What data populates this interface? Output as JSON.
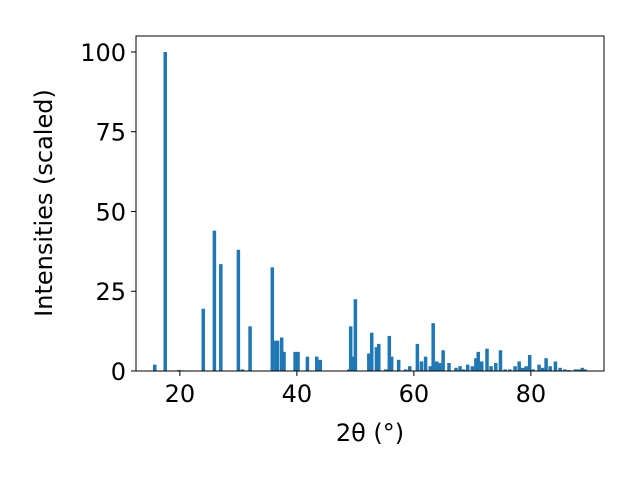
{
  "chart_data": {
    "type": "bar",
    "xlabel": "2θ (°)",
    "ylabel": "Intensities (scaled)",
    "xlim": [
      12.5,
      92.5
    ],
    "ylim": [
      0,
      105
    ],
    "xticks": [
      20,
      40,
      60,
      80
    ],
    "yticks": [
      0,
      25,
      50,
      75,
      100
    ],
    "bar_width_deg": 0.6,
    "color": "#1f77b4",
    "grid": false,
    "series": [
      {
        "x": [
          15.7,
          17.5,
          19.8,
          20.5,
          24.0,
          25.9,
          27.0,
          30.0,
          30.7,
          32.0,
          35.8,
          36.4,
          36.7,
          37.4,
          37.8,
          39.7,
          40.2,
          41.8,
          43.4,
          44.0,
          48.9,
          49.2,
          49.6,
          50.0,
          52.3,
          52.8,
          53.6,
          54.0,
          55.2,
          55.8,
          56.2,
          57.4,
          58.6,
          59.3,
          60.6,
          61.3,
          62.0,
          62.8,
          63.3,
          63.9,
          64.4,
          65.0,
          66.0,
          67.2,
          67.9,
          68.5,
          69.2,
          70.0,
          70.6,
          71.0,
          71.6,
          72.5,
          73.2,
          74.0,
          74.8,
          75.6,
          76.4,
          77.3,
          78.0,
          78.6,
          79.2,
          79.8,
          80.4,
          81.4,
          82.0,
          82.6,
          83.3,
          84.2,
          85.0,
          85.8,
          86.5,
          87.6,
          88.2,
          88.8,
          89.3
        ],
        "values": [
          2,
          100,
          0.3,
          0.2,
          19.5,
          44,
          33.5,
          38,
          0.5,
          14,
          32.5,
          9.5,
          9.5,
          10.5,
          6,
          6,
          6,
          4.5,
          4.5,
          3.5,
          0.5,
          14,
          4.5,
          22.5,
          5.5,
          12,
          7.5,
          8.5,
          0.5,
          11,
          4.5,
          3.5,
          0.5,
          1.5,
          8.5,
          3,
          4.5,
          1.5,
          15,
          3,
          2.5,
          6.5,
          2.5,
          1,
          1.5,
          0.5,
          2,
          1.5,
          4,
          6,
          3,
          7,
          1.5,
          2.5,
          6.5,
          0.5,
          0.5,
          1.5,
          3,
          1,
          1.5,
          5,
          0.5,
          2,
          1,
          4,
          1.5,
          3,
          1,
          0.5,
          0.3,
          0.5,
          0.5,
          1,
          0.5
        ]
      }
    ]
  }
}
